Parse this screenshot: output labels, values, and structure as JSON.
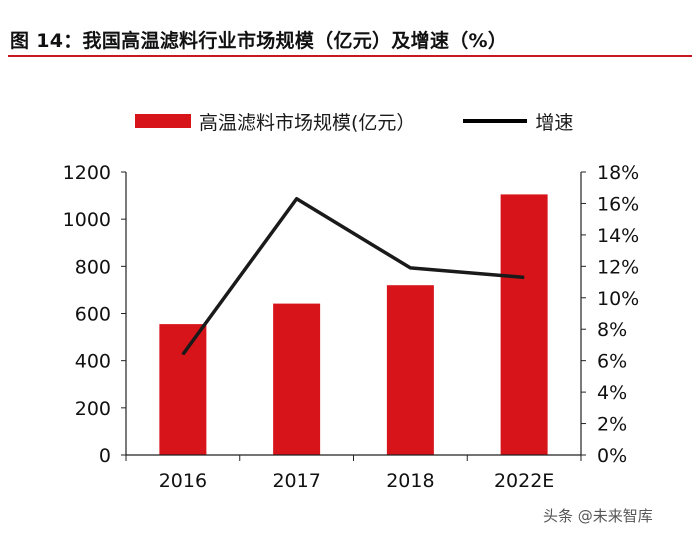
{
  "figure": {
    "title": "图 14：我国高温滤料行业市场规模（亿元）及增速（%）"
  },
  "legend": {
    "bar_label": "高温滤料市场规模(亿元）",
    "line_label": "增速"
  },
  "watermark": "头条 @未来智库",
  "colors": {
    "bar": "#d7141a",
    "line": "#1a1a1a",
    "rule": "#c8181e"
  },
  "chart_data": {
    "type": "bar",
    "categories": [
      "2016",
      "2017",
      "2018",
      "2022E"
    ],
    "series": [
      {
        "name": "高温滤料市场规模(亿元）",
        "type": "bar",
        "axis": "left",
        "values": [
          555,
          642,
          720,
          1105
        ]
      },
      {
        "name": "增速",
        "type": "line",
        "axis": "right",
        "values": [
          6.4,
          16.3,
          11.9,
          11.3
        ]
      }
    ],
    "ylim_left": [
      0,
      1200
    ],
    "yticks_left": [
      "0",
      "200",
      "400",
      "600",
      "800",
      "1000",
      "1200"
    ],
    "ylim_right": [
      0,
      18
    ],
    "yticks_right": [
      "0%",
      "2%",
      "4%",
      "6%",
      "8%",
      "10%",
      "12%",
      "14%",
      "16%",
      "18%"
    ],
    "grid": false,
    "legend_position": "top"
  }
}
